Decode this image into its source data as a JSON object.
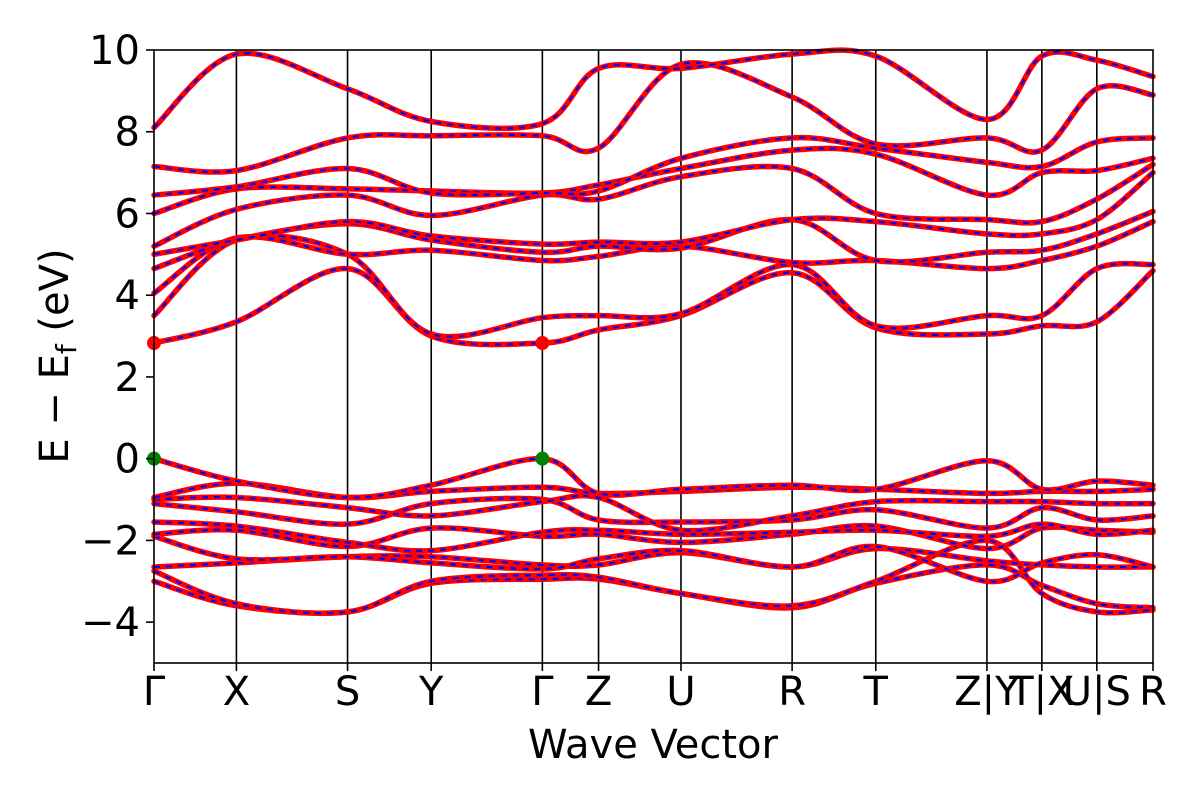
{
  "chart_data": {
    "type": "line",
    "title": "",
    "xlabel": "Wave Vector",
    "ylabel": "E − E",
    "ylabel_sub": "f",
    "ylabel_unit": " (eV)",
    "ylim": [
      -5,
      10
    ],
    "yticks": [
      -4,
      -2,
      0,
      2,
      4,
      6,
      8,
      10
    ],
    "ytick_labels": [
      "−4",
      "−2",
      "0",
      "2",
      "4",
      "6",
      "8",
      "10"
    ],
    "kpoints": [
      {
        "label": "Γ",
        "x": 0.0
      },
      {
        "label": "X",
        "x": 0.66
      },
      {
        "label": "S",
        "x": 1.55
      },
      {
        "label": "Y",
        "x": 2.22
      },
      {
        "label": "Γ",
        "x": 3.11
      },
      {
        "label": "Z",
        "x": 3.56
      },
      {
        "label": "U",
        "x": 4.22
      },
      {
        "label": "R",
        "x": 5.11
      },
      {
        "label": "T",
        "x": 5.78
      },
      {
        "label": "Z|Y",
        "x": 6.67
      },
      {
        "label": "T|X",
        "x": 7.11
      },
      {
        "label": "U|S",
        "x": 7.55
      },
      {
        "label": "R",
        "x": 8.0
      }
    ],
    "xlim": [
      0,
      8.0
    ],
    "series_colors": {
      "band_line": "#ff0000",
      "band_dash": "#0000ff",
      "cbm_marker": "#ff0000",
      "vbm_marker": "#008000"
    },
    "markers": [
      {
        "kind": "cbm",
        "x": 0.0,
        "y": 2.83
      },
      {
        "kind": "cbm",
        "x": 3.11,
        "y": 2.83
      },
      {
        "kind": "vbm",
        "x": 0.0,
        "y": 0.0
      },
      {
        "kind": "vbm",
        "x": 3.11,
        "y": 0.0
      }
    ],
    "bands": [
      {
        "ys": [
          -3.0,
          -3.6,
          -3.75,
          -3.05,
          -2.95,
          -2.95,
          -3.3,
          -3.65,
          -3.05,
          -2.6,
          -3.1,
          -3.55,
          -3.65
        ]
      },
      {
        "ys": [
          -2.75,
          -3.55,
          -3.75,
          -3.0,
          -2.85,
          -2.9,
          -3.3,
          -3.6,
          -3.0,
          -2.0,
          -3.3,
          -3.75,
          -3.7
        ]
      },
      {
        "ys": [
          -2.65,
          -2.55,
          -2.4,
          -2.4,
          -2.6,
          -2.6,
          -2.3,
          -2.65,
          -2.2,
          -2.5,
          -2.6,
          -2.65,
          -2.65
        ]
      },
      {
        "ys": [
          -1.9,
          -2.45,
          -2.4,
          -2.55,
          -2.7,
          -2.45,
          -2.25,
          -2.65,
          -2.15,
          -3.0,
          -2.55,
          -2.35,
          -2.65
        ]
      },
      {
        "ys": [
          -1.85,
          -1.75,
          -2.15,
          -1.7,
          -1.9,
          -1.85,
          -2.05,
          -1.85,
          -1.65,
          -2.2,
          -1.7,
          -1.75,
          -1.8
        ]
      },
      {
        "ys": [
          -1.55,
          -1.65,
          -2.05,
          -2.25,
          -1.8,
          -1.75,
          -1.85,
          -1.8,
          -1.75,
          -1.9,
          -1.6,
          -1.85,
          -1.75
        ]
      },
      {
        "ys": [
          -1.1,
          -1.3,
          -1.6,
          -1.1,
          -1.0,
          -1.5,
          -1.55,
          -1.5,
          -1.25,
          -1.7,
          -1.2,
          -1.5,
          -1.4
        ]
      },
      {
        "ys": [
          -1.0,
          -0.95,
          -1.2,
          -1.4,
          -1.05,
          -0.95,
          -1.75,
          -1.4,
          -1.05,
          -1.05,
          -1.05,
          -1.1,
          -1.1
        ]
      },
      {
        "ys": [
          -0.95,
          -0.6,
          -0.95,
          -0.8,
          -0.7,
          -0.85,
          -0.8,
          -0.7,
          -0.75,
          -0.85,
          -0.8,
          -0.8,
          -0.75
        ]
      },
      {
        "ys": [
          0.0,
          -0.55,
          -0.95,
          -0.65,
          0.0,
          -0.85,
          -0.75,
          -0.65,
          -0.75,
          -0.05,
          -0.75,
          -0.55,
          -0.65
        ]
      },
      {
        "ys": [
          2.83,
          3.35,
          4.65,
          3.0,
          2.83,
          3.15,
          3.5,
          4.55,
          3.2,
          3.05,
          3.25,
          3.35,
          4.6
        ]
      },
      {
        "ys": [
          3.5,
          5.35,
          5.0,
          3.05,
          3.45,
          3.5,
          3.55,
          4.75,
          3.25,
          3.5,
          3.5,
          4.65,
          4.75
        ]
      },
      {
        "ys": [
          4.05,
          5.4,
          5.0,
          5.1,
          4.85,
          4.95,
          5.2,
          4.8,
          4.85,
          4.65,
          4.85,
          5.2,
          5.8
        ]
      },
      {
        "ys": [
          4.65,
          5.35,
          5.75,
          5.35,
          5.05,
          5.2,
          5.15,
          5.85,
          4.85,
          5.05,
          5.1,
          5.5,
          6.05
        ]
      },
      {
        "ys": [
          5.0,
          5.35,
          5.8,
          5.45,
          5.25,
          5.3,
          5.3,
          5.85,
          5.8,
          5.5,
          5.5,
          5.85,
          7.0
        ]
      },
      {
        "ys": [
          5.2,
          6.1,
          6.45,
          5.95,
          6.45,
          6.35,
          6.9,
          7.1,
          6.0,
          5.85,
          5.8,
          6.35,
          7.2
        ]
      },
      {
        "ys": [
          6.0,
          6.6,
          6.6,
          6.55,
          6.5,
          6.7,
          7.1,
          7.55,
          7.45,
          6.45,
          7.0,
          7.05,
          7.35
        ]
      },
      {
        "ys": [
          6.45,
          6.65,
          7.1,
          6.5,
          6.5,
          6.55,
          7.35,
          7.85,
          7.6,
          7.25,
          7.15,
          7.75,
          7.85
        ]
      },
      {
        "ys": [
          7.15,
          7.05,
          7.85,
          7.9,
          7.9,
          7.6,
          9.65,
          8.85,
          7.7,
          7.85,
          7.55,
          9.05,
          8.9
        ]
      },
      {
        "ys": [
          8.1,
          9.9,
          9.05,
          8.25,
          8.2,
          9.55,
          9.55,
          9.9,
          9.85,
          8.3,
          9.85,
          9.75,
          9.35
        ]
      }
    ]
  }
}
